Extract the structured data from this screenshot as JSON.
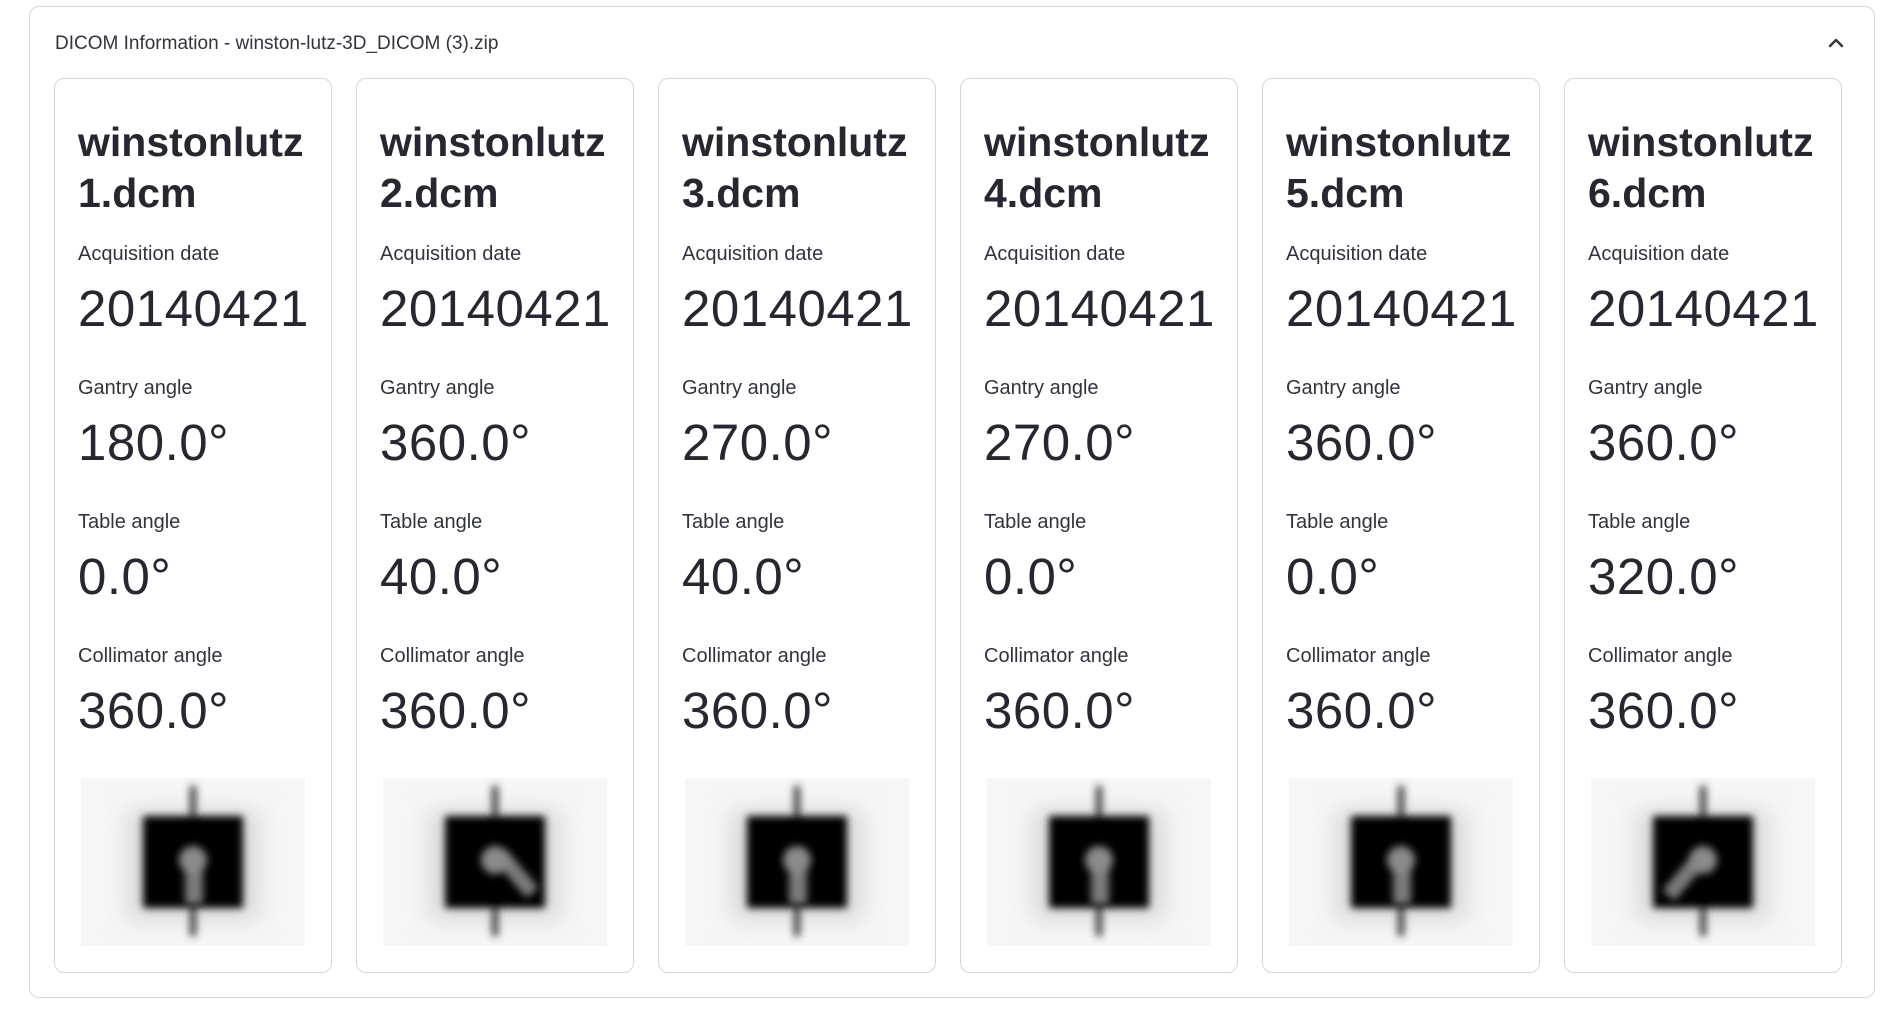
{
  "expander": {
    "title": "DICOM Information - winston-lutz-3D_DICOM (3).zip",
    "expanded": true
  },
  "labels": {
    "acquisition_date": "Acquisition date",
    "gantry_angle": "Gantry angle",
    "table_angle": "Table angle",
    "collimator_angle": "Collimator angle"
  },
  "cards": [
    {
      "filename": "winstonlutz 1.dcm",
      "acquisition_date": "20140421",
      "gantry_angle": "180.0°",
      "table_angle": "0.0°",
      "collimator_angle": "360.0°"
    },
    {
      "filename": "winstonlutz 2.dcm",
      "acquisition_date": "20140421",
      "gantry_angle": "360.0°",
      "table_angle": "40.0°",
      "collimator_angle": "360.0°"
    },
    {
      "filename": "winstonlutz 3.dcm",
      "acquisition_date": "20140421",
      "gantry_angle": "270.0°",
      "table_angle": "40.0°",
      "collimator_angle": "360.0°"
    },
    {
      "filename": "winstonlutz 4.dcm",
      "acquisition_date": "20140421",
      "gantry_angle": "270.0°",
      "table_angle": "0.0°",
      "collimator_angle": "360.0°"
    },
    {
      "filename": "winstonlutz 5.dcm",
      "acquisition_date": "20140421",
      "gantry_angle": "360.0°",
      "table_angle": "0.0°",
      "collimator_angle": "360.0°"
    },
    {
      "filename": "winstonlutz 6.dcm",
      "acquisition_date": "20140421",
      "gantry_angle": "360.0°",
      "table_angle": "320.0°",
      "collimator_angle": "360.0°"
    }
  ],
  "icons": {
    "collapse": "chevron-up-icon",
    "thumbnail": "winston-lutz-image-thumbnail"
  }
}
